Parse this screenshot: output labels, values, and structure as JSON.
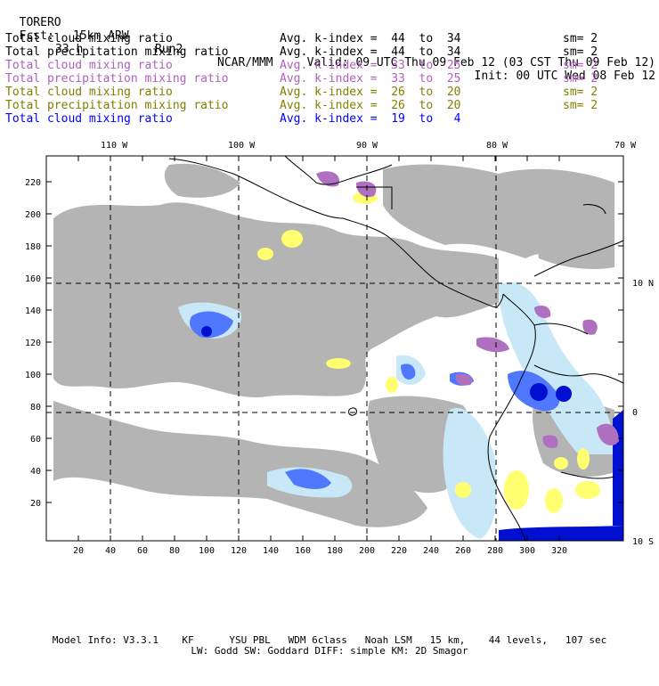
{
  "header": {
    "model": "TORERO",
    "resolution": "15km ARW",
    "run": "Run2",
    "center": "NCAR/MMM",
    "init": "Init: 00 UTC Wed 08 Feb 12",
    "fcst_label": "Fcst:",
    "fcst_value": "33 h",
    "valid": "Valid: 09 UTC Thu 09 Feb 12 (03 CST Thu 09 Feb 12)"
  },
  "legend": [
    {
      "label": "Total cloud mixing ratio",
      "kindex": "Avg. k-index =  44  to  34",
      "sm": "sm= 2",
      "color": "#000000"
    },
    {
      "label": "Total precipitation mixing ratio",
      "kindex": "Avg. k-index =  44  to  34",
      "sm": "sm= 2",
      "color": "#000000"
    },
    {
      "label": "Total cloud mixing ratio",
      "kindex": "Avg. k-index =  33  to  25",
      "sm": "sm= 2",
      "color": "#b060c0"
    },
    {
      "label": "Total precipitation mixing ratio",
      "kindex": "Avg. k-index =  33  to  25",
      "sm": "sm= 2",
      "color": "#b060c0"
    },
    {
      "label": "Total cloud mixing ratio",
      "kindex": "Avg. k-index =  26  to  20",
      "sm": "sm= 2",
      "color": "#808000"
    },
    {
      "label": "Total precipitation mixing ratio",
      "kindex": "Avg. k-index =  26  to  20",
      "sm": "sm= 2",
      "color": "#808000"
    },
    {
      "label": "Total cloud mixing ratio",
      "kindex": "Avg. k-index =  19  to   4",
      "sm": "",
      "color": "#0000ff"
    }
  ],
  "axes": {
    "top_lon_labels": [
      "110 W",
      "100 W",
      "90 W",
      "80 W",
      "70 W"
    ],
    "right_lat_labels": [
      "10 N",
      "0",
      "10 S"
    ],
    "left_ticks": [
      "220",
      "200",
      "180",
      "160",
      "140",
      "120",
      "100",
      "80",
      "60",
      "40",
      "20"
    ],
    "bottom_ticks": [
      "20",
      "40",
      "60",
      "80",
      "100",
      "120",
      "140",
      "160",
      "180",
      "200",
      "220",
      "240",
      "260",
      "280",
      "300",
      "320"
    ]
  },
  "colors": {
    "cloud_gray": "#b4b4b4",
    "purple": "#b070c0",
    "yellow": "#ffff70",
    "light_blue": "#c8e8f8",
    "mid_blue": "#5078ff",
    "dark_blue": "#0010d0"
  },
  "footer": {
    "line1": "Model Info: V3.3.1    KF      YSU PBL   WDM 6class   Noah LSM   15 km,    44 levels,   107 sec",
    "line2": "LW: Godd SW: Goddard DIFF: simple KM: 2D Smagor"
  }
}
